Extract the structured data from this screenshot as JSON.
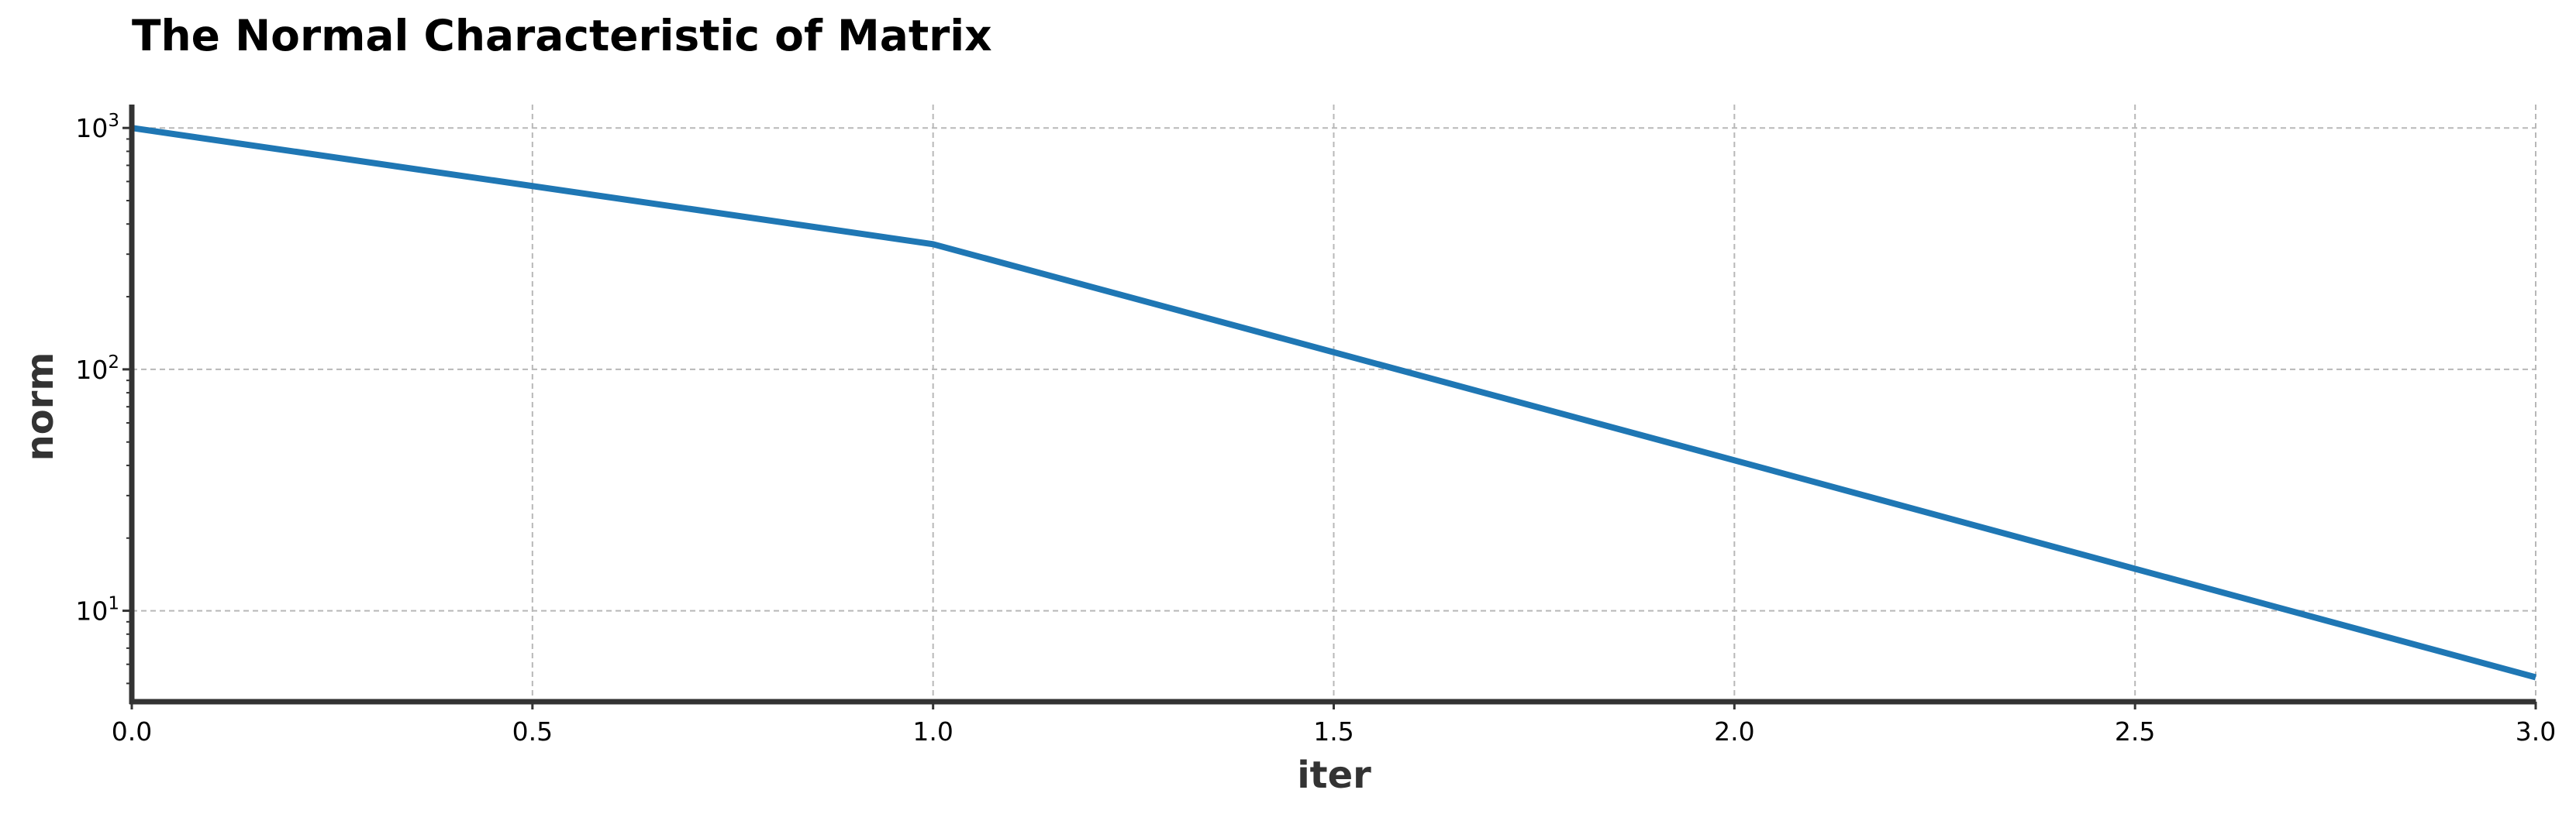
{
  "chart_data": {
    "type": "line",
    "title": "The Normal Characteristic of Matrix",
    "xlabel": "iter",
    "ylabel": "norm",
    "x": [
      0,
      1,
      2,
      3
    ],
    "series": [
      {
        "values": [
          1000,
          330,
          42,
          5.3
        ],
        "color": "#1f77b4"
      }
    ],
    "xlim": [
      0,
      3
    ],
    "ylim": [
      4.2,
      1250
    ],
    "yscale": "log",
    "xticks": [
      0.0,
      0.5,
      1.0,
      1.5,
      2.0,
      2.5,
      3.0
    ],
    "xtick_labels": [
      "0.0",
      "0.5",
      "1.0",
      "1.5",
      "2.0",
      "2.5",
      "3.0"
    ],
    "yticks": [
      {
        "value": 10,
        "base": "10",
        "exp": "1"
      },
      {
        "value": 100,
        "base": "10",
        "exp": "2"
      },
      {
        "value": 1000,
        "base": "10",
        "exp": "3"
      }
    ],
    "grid": true,
    "legend": "none"
  }
}
